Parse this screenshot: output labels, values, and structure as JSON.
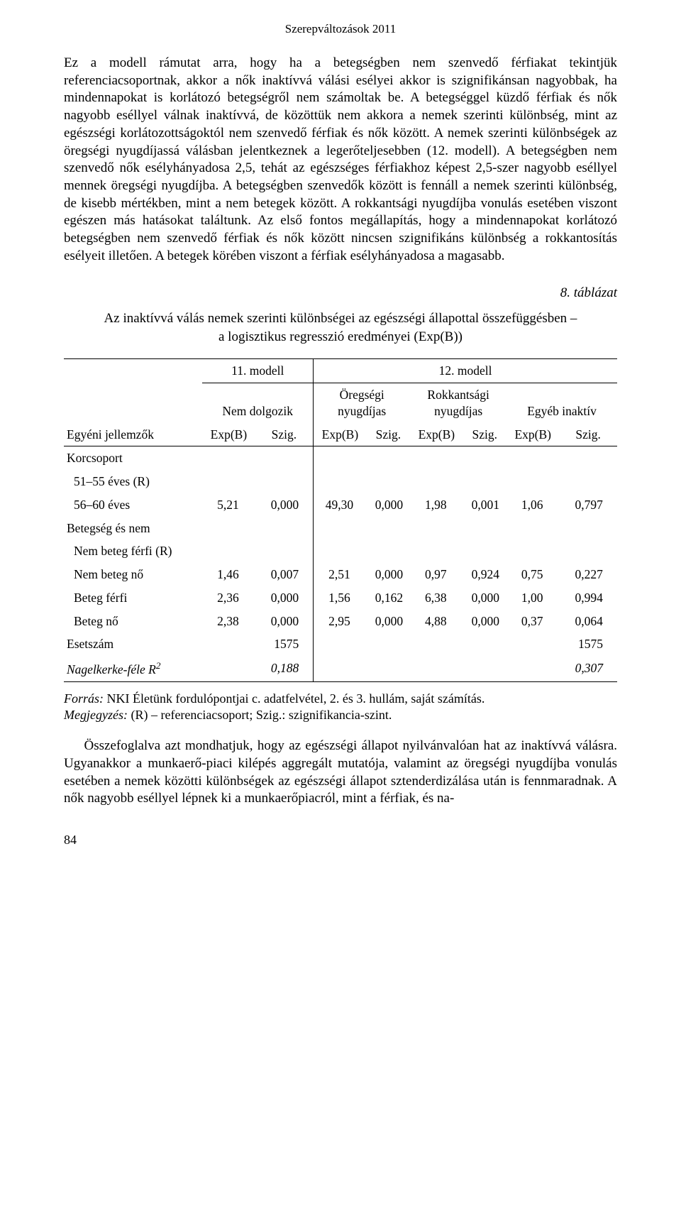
{
  "header": "Szerepváltozások 2011",
  "body_text": "Ez a modell rámutat arra, hogy ha a betegségben nem szenvedő férfiakat tekintjük referenciacsoportnak, akkor a nők inaktívvá válási esélyei akkor is szignifikánsan nagyobbak, ha mindennapokat is korlátozó betegségről nem számoltak be. A betegséggel küzdő férfiak és nők nagyobb eséllyel válnak inaktívvá, de közöttük nem akkora a nemek szerinti különbség, mint az egészségi korlátozottságoktól nem szenvedő férfiak és nők között. A nemek szerinti különbségek az öregségi nyugdíjassá válásban jelentkeznek a legerőteljesebben (12. modell). A betegségben nem szenvedő nők esélyhányadosa 2,5, tehát az egészséges férfiakhoz képest 2,5-szer nagyobb eséllyel mennek öregségi nyugdíjba. A betegségben szenvedők között is fennáll a nemek szerinti különbség, de kisebb mértékben, mint a nem betegek között. A rokkantsági nyugdíjba vonulás esetében viszont egészen más hatásokat találtunk. Az első fontos megállapítás, hogy a mindennapokat korlátozó betegségben nem szenvedő férfiak és nők között nincsen szignifikáns különbség a rokkantosítás esélyeit illetően. A betegek körében viszont a férfiak esélyhányadosa a magasabb.",
  "table_label": "8. táblázat",
  "table_title_line1": "Az inaktívvá válás nemek szerinti különbségei az egészségi állapottal összefüggésben –",
  "table_title_line2": "a logisztikus regresszió eredményei (Exp(B))",
  "table": {
    "row_header_label": "Egyéni jellemzők",
    "model11": "11. modell",
    "model12": "12. modell",
    "col_nemdolgozik": "Nem dolgozik",
    "col_oregsgei_1": "Öregségi",
    "col_oregsgei_2": "nyugdíjas",
    "col_rokkant_1": "Rokkantsági",
    "col_rokkant_2": "nyugdíjas",
    "col_egyeb": "Egyéb inaktív",
    "sub_expb": "Exp(B)",
    "sub_szig": "Szig.",
    "rows": {
      "korcsoport": "Korcsoport",
      "r_51_55": "51–55 éves (R)",
      "r_56_60": "56–60 éves",
      "betegseg": "Betegség és nem",
      "nem_beteg_ferfi_r": "Nem beteg férfi (R)",
      "nem_beteg_no": "Nem beteg nő",
      "beteg_ferfi": "Beteg férfi",
      "beteg_no": "Beteg nő",
      "esetszam": "Esetszám",
      "nagelkerke_a": "Nagelkerke-féle R",
      "nagelkerke_sup": "2"
    },
    "data": {
      "r_56_60": [
        "5,21",
        "0,000",
        "49,30",
        "0,000",
        "1,98",
        "0,001",
        "1,06",
        "0,797"
      ],
      "nem_beteg_no": [
        "1,46",
        "0,007",
        "2,51",
        "0,000",
        "0,97",
        "0,924",
        "0,75",
        "0,227"
      ],
      "beteg_ferfi": [
        "2,36",
        "0,000",
        "1,56",
        "0,162",
        "6,38",
        "0,000",
        "1,00",
        "0,994"
      ],
      "beteg_no": [
        "2,38",
        "0,000",
        "2,95",
        "0,000",
        "4,88",
        "0,000",
        "0,37",
        "0,064"
      ],
      "esetszam": [
        "1575",
        "1575"
      ],
      "nagelkerke": [
        "0,188",
        "0,307"
      ]
    }
  },
  "source_label": "Forrás:",
  "source_text": " NKI Életünk fordulópontjai c. adatfelvétel, 2. és 3. hullám, saját számítás.",
  "note_label": "Megjegyzés:",
  "note_text": " (R) – referenciacsoport; Szig.: szignifikancia-szint.",
  "last_para": "Összefoglalva azt mondhatjuk, hogy az egészségi állapot nyilvánvalóan hat az inaktívvá válásra. Ugyanakkor a munkaerő-piaci kilépés aggregált mutatója, valamint az öregségi nyugdíjba vonulás esetében a nemek közötti különbségek az egészségi állapot sztenderdizálása után is fennmaradnak. A nők nagyobb eséllyel lépnek ki a munkaerőpiacról, mint a férfiak, és na-",
  "page_number": "84"
}
